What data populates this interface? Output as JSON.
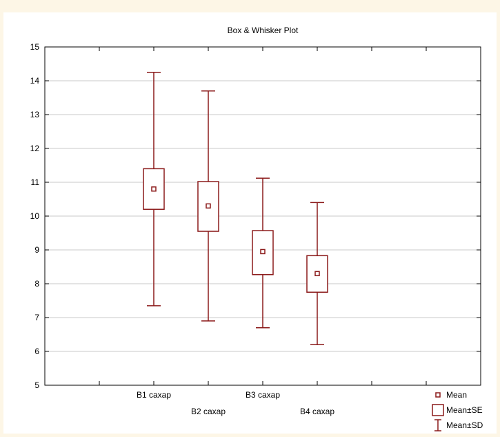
{
  "chart_data": {
    "type": "box",
    "title": "Box & Whisker Plot",
    "xlabel": "",
    "ylabel": "",
    "ylim": [
      5,
      15
    ],
    "yticks": [
      5,
      6,
      7,
      8,
      9,
      10,
      11,
      12,
      13,
      14,
      15
    ],
    "grid": true,
    "categories": [
      "B1 caxap",
      "B2 caxap",
      "B3 caxap",
      "B4 caxap"
    ],
    "series": [
      {
        "category": "B1 caxap",
        "mean": 10.8,
        "se_low": 10.2,
        "se_high": 11.4,
        "sd_low": 7.35,
        "sd_high": 14.25
      },
      {
        "category": "B2 caxap",
        "mean": 10.3,
        "se_low": 9.55,
        "se_high": 11.02,
        "sd_low": 6.9,
        "sd_high": 13.7
      },
      {
        "category": "B3 caxap",
        "mean": 8.95,
        "se_low": 8.27,
        "se_high": 9.57,
        "sd_low": 6.7,
        "sd_high": 11.12
      },
      {
        "category": "B4 caxap",
        "mean": 8.3,
        "se_low": 7.75,
        "se_high": 8.83,
        "sd_low": 6.2,
        "sd_high": 10.4
      }
    ],
    "legend": {
      "position": "bottom-right",
      "entries": [
        {
          "symbol": "mean",
          "label": "Mean"
        },
        {
          "symbol": "se",
          "label": "Mean±SE"
        },
        {
          "symbol": "sd",
          "label": "Mean±SD"
        }
      ]
    },
    "colors": {
      "series": "#8b1a1a",
      "grid": "#c8c8c8",
      "axis": "#000000"
    }
  }
}
